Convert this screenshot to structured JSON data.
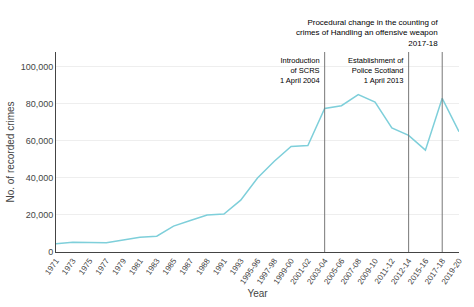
{
  "chart_data": {
    "type": "line",
    "xlabel": "Year",
    "ylabel": "No. of recorded crimes",
    "categories": [
      "1971",
      "1973",
      "1975",
      "1977",
      "1979",
      "1981",
      "1983",
      "1985",
      "1987",
      "1988",
      "1991",
      "1993",
      "1995-96",
      "1997-98",
      "1999-00",
      "2001-02",
      "2003-04",
      "2005-06",
      "2007-08",
      "2009-10",
      "2011-12",
      "2012-14",
      "2015-16",
      "2017-18",
      "2019-20"
    ],
    "values": [
      4500,
      5200,
      5100,
      5000,
      6500,
      8000,
      8500,
      14000,
      17000,
      20000,
      20500,
      28000,
      40000,
      49000,
      57000,
      57500,
      77500,
      79000,
      85000,
      81000,
      67000,
      63000,
      55000,
      83000,
      65000
    ],
    "color": "#7ecfda",
    "ylim": [
      0,
      108000
    ],
    "yticks": [
      0,
      {
        "value": 20000,
        "label": "20,000"
      },
      {
        "value": 40000,
        "label": "40,000"
      },
      {
        "value": 60000,
        "label": "60,000"
      },
      {
        "value": 80000,
        "label": "80,000"
      },
      {
        "value": 100000,
        "label": "100,000"
      }
    ],
    "grid": true,
    "annotations": [
      {
        "text": "Introduction\nof SCRS\n1 April 2004",
        "x": "2003-04",
        "color": "#777777"
      },
      {
        "text": "Establishment of\nPolice Scotland\n1 April 2013",
        "x": "2012-14",
        "color": "#777777"
      },
      {
        "text": "Procedural change in the counting of\ncrimes of Handling an offensive weapon\n2017-18",
        "x": "2017-18",
        "color": "#777777"
      }
    ]
  }
}
